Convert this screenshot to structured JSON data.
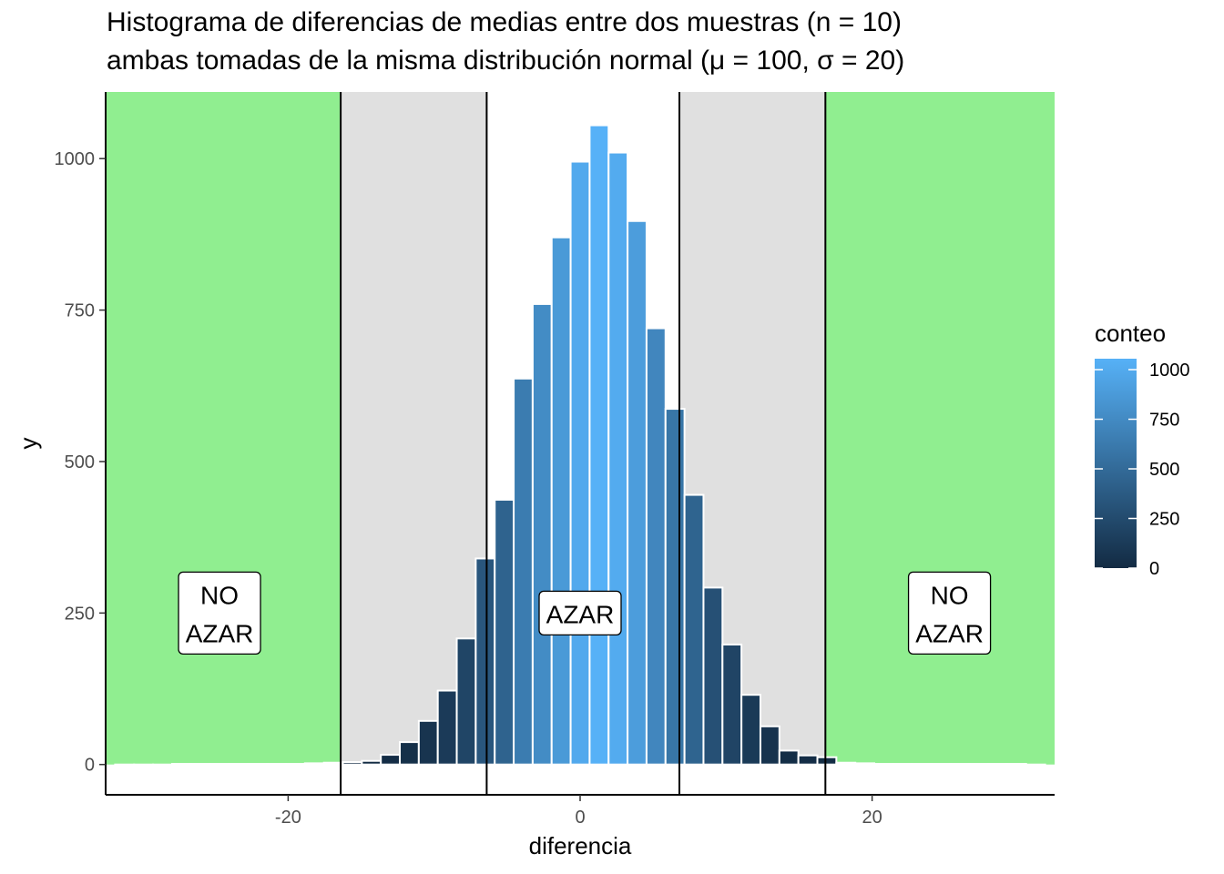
{
  "chart_data": {
    "type": "bar",
    "title": "Histograma de diferencias de medias entre dos muestras (n = 10)",
    "subtitle": "ambas tomadas de la misma distribución normal (μ = 100, σ = 20)",
    "xlabel": "diferencia",
    "ylabel": "y",
    "xlim": [
      -32.5,
      32.5
    ],
    "ylim": [
      -50,
      1110
    ],
    "x_ticks": [
      -20,
      0,
      20
    ],
    "x_tick_labels": [
      "-20",
      "0",
      "20"
    ],
    "y_ticks": [
      0,
      250,
      500,
      750,
      1000
    ],
    "y_tick_labels": [
      "0",
      "250",
      "500",
      "750",
      "1000"
    ],
    "bin_width": 1.3,
    "bins": [
      {
        "x": -31.2,
        "count": 0
      },
      {
        "x": -29.9,
        "count": 0
      },
      {
        "x": -28.6,
        "count": 0
      },
      {
        "x": -27.3,
        "count": 1
      },
      {
        "x": -26.0,
        "count": 1
      },
      {
        "x": -24.7,
        "count": 1
      },
      {
        "x": -23.4,
        "count": 1
      },
      {
        "x": -22.1,
        "count": 1
      },
      {
        "x": -20.8,
        "count": 1
      },
      {
        "x": -19.5,
        "count": 1
      },
      {
        "x": -18.2,
        "count": 2
      },
      {
        "x": -16.9,
        "count": 3
      },
      {
        "x": -15.6,
        "count": 4
      },
      {
        "x": -14.3,
        "count": 6
      },
      {
        "x": -13.0,
        "count": 16
      },
      {
        "x": -11.7,
        "count": 37
      },
      {
        "x": -10.4,
        "count": 72
      },
      {
        "x": -9.1,
        "count": 122
      },
      {
        "x": -7.8,
        "count": 208
      },
      {
        "x": -6.5,
        "count": 340
      },
      {
        "x": -5.2,
        "count": 437
      },
      {
        "x": -3.9,
        "count": 637
      },
      {
        "x": -2.6,
        "count": 760
      },
      {
        "x": -1.3,
        "count": 870
      },
      {
        "x": 0.0,
        "count": 995
      },
      {
        "x": 1.3,
        "count": 1055
      },
      {
        "x": 2.6,
        "count": 1010
      },
      {
        "x": 3.9,
        "count": 897
      },
      {
        "x": 5.2,
        "count": 720
      },
      {
        "x": 6.5,
        "count": 587
      },
      {
        "x": 7.8,
        "count": 445
      },
      {
        "x": 9.1,
        "count": 292
      },
      {
        "x": 10.4,
        "count": 198
      },
      {
        "x": 11.7,
        "count": 115
      },
      {
        "x": 13.0,
        "count": 63
      },
      {
        "x": 14.3,
        "count": 23
      },
      {
        "x": 15.6,
        "count": 15
      },
      {
        "x": 16.9,
        "count": 12
      },
      {
        "x": 18.2,
        "count": 3
      },
      {
        "x": 19.5,
        "count": 2
      },
      {
        "x": 20.8,
        "count": 1
      },
      {
        "x": 22.1,
        "count": 1
      },
      {
        "x": 23.4,
        "count": 1
      },
      {
        "x": 24.7,
        "count": 1
      },
      {
        "x": 26.0,
        "count": 1
      },
      {
        "x": 27.3,
        "count": 1
      },
      {
        "x": 28.6,
        "count": 1
      },
      {
        "x": 29.9,
        "count": 1
      },
      {
        "x": 31.2,
        "count": 0
      }
    ],
    "regions": [
      {
        "type": "no-azar",
        "x0": -32.5,
        "x1": -16.4,
        "color": "#90EE90"
      },
      {
        "type": "intermediate",
        "x0": -16.4,
        "x1": -6.4,
        "color": "#E0E0E0"
      },
      {
        "type": "intermediate",
        "x0": 6.8,
        "x1": 16.8,
        "color": "#E0E0E0"
      },
      {
        "type": "no-azar",
        "x0": 16.8,
        "x1": 32.5,
        "color": "#90EE90"
      }
    ],
    "vlines": [
      -16.4,
      -6.4,
      6.8,
      16.8
    ],
    "annotations": [
      {
        "lines": [
          "NO",
          "AZAR"
        ],
        "x": -24.7,
        "y": 250
      },
      {
        "lines": [
          "AZAR"
        ],
        "x": 0.0,
        "y": 250
      },
      {
        "lines": [
          "NO",
          "AZAR"
        ],
        "x": 25.3,
        "y": 250
      }
    ],
    "legend": {
      "title": "conteo",
      "position": "right",
      "min": 0,
      "max": 1055,
      "ticks": [
        0,
        250,
        500,
        750,
        1000
      ],
      "tick_labels": [
        "0",
        "250",
        "500",
        "750",
        "1000"
      ],
      "color_low": "#132B43",
      "color_high": "#56B1F7"
    },
    "grid": false
  }
}
